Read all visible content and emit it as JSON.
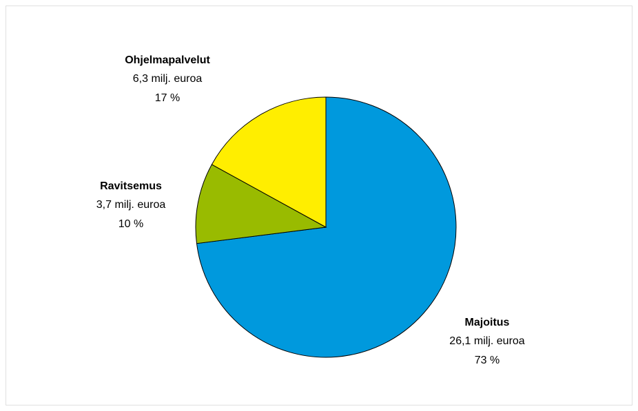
{
  "chart_data": {
    "type": "pie",
    "categories": [
      "Majoitus",
      "Ravitsemus",
      "Ohjelmapalvelut"
    ],
    "values": [
      73,
      10,
      17
    ],
    "value_labels": [
      "73 %",
      "10 %",
      "17 %"
    ],
    "amount_labels": [
      "26,1 milj. euroa",
      "3,7 milj. euroa",
      "6,3 milj. euroa"
    ],
    "colors": [
      "#0099dd",
      "#99bb00",
      "#ffee00"
    ]
  }
}
